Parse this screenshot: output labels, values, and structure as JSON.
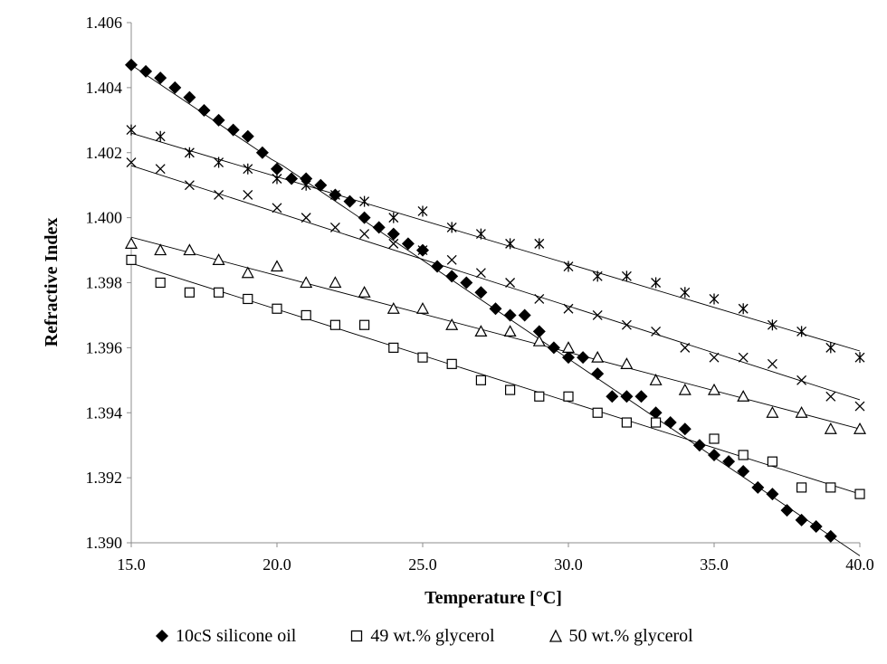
{
  "chart_data": {
    "type": "scatter",
    "title": "",
    "xlabel": "Temperature [°C]",
    "ylabel": "Refractive Index",
    "xlim": [
      15,
      40
    ],
    "ylim": [
      1.39,
      1.406
    ],
    "x_ticks": [
      "15.0",
      "20.0",
      "25.0",
      "30.0",
      "35.0",
      "40.0"
    ],
    "y_ticks": [
      "1.390",
      "1.392",
      "1.394",
      "1.396",
      "1.398",
      "1.400",
      "1.402",
      "1.404",
      "1.406"
    ],
    "grid": false,
    "legend_position": "bottom",
    "series": [
      {
        "name": "10cS silicone oil",
        "marker": "diamond-filled",
        "trendline": [
          [
            15,
            1.4047
          ],
          [
            19.8,
            1.4018
          ],
          [
            20.2,
            1.4016
          ],
          [
            40,
            1.3896
          ]
        ],
        "points": [
          [
            15,
            1.4047
          ],
          [
            15.5,
            1.4045
          ],
          [
            16,
            1.4043
          ],
          [
            16.5,
            1.404
          ],
          [
            17,
            1.4037
          ],
          [
            17.5,
            1.4033
          ],
          [
            18,
            1.403
          ],
          [
            18.5,
            1.4027
          ],
          [
            19,
            1.4025
          ],
          [
            19.5,
            1.402
          ],
          [
            20,
            1.4015
          ],
          [
            20.5,
            1.4012
          ],
          [
            21,
            1.4012
          ],
          [
            21.5,
            1.401
          ],
          [
            22,
            1.4007
          ],
          [
            22.5,
            1.4005
          ],
          [
            23,
            1.4
          ],
          [
            23.5,
            1.3997
          ],
          [
            24,
            1.3995
          ],
          [
            24.5,
            1.3992
          ],
          [
            25,
            1.399
          ],
          [
            25.5,
            1.3985
          ],
          [
            26,
            1.3982
          ],
          [
            26.5,
            1.398
          ],
          [
            27,
            1.3977
          ],
          [
            27.5,
            1.3972
          ],
          [
            28,
            1.397
          ],
          [
            28.5,
            1.397
          ],
          [
            29,
            1.3965
          ],
          [
            29.5,
            1.396
          ],
          [
            30,
            1.3957
          ],
          [
            30.5,
            1.3957
          ],
          [
            31,
            1.3952
          ],
          [
            31.5,
            1.3945
          ],
          [
            32,
            1.3945
          ],
          [
            32.5,
            1.3945
          ],
          [
            33,
            1.394
          ],
          [
            33.5,
            1.3937
          ],
          [
            34,
            1.3935
          ],
          [
            34.5,
            1.393
          ],
          [
            35,
            1.3927
          ],
          [
            35.5,
            1.3925
          ],
          [
            36,
            1.3922
          ],
          [
            36.5,
            1.3917
          ],
          [
            37,
            1.3915
          ],
          [
            37.5,
            1.391
          ],
          [
            38,
            1.3907
          ],
          [
            38.5,
            1.3905
          ],
          [
            39,
            1.3902
          ]
        ]
      },
      {
        "name": "49 wt.% glycerol",
        "marker": "square-open",
        "trendline": [
          [
            15,
            1.3986
          ],
          [
            40,
            1.3915
          ]
        ],
        "points": [
          [
            15,
            1.3987
          ],
          [
            16,
            1.398
          ],
          [
            17,
            1.3977
          ],
          [
            18,
            1.3977
          ],
          [
            19,
            1.3975
          ],
          [
            20,
            1.3972
          ],
          [
            21,
            1.397
          ],
          [
            22,
            1.3967
          ],
          [
            23,
            1.3967
          ],
          [
            24,
            1.396
          ],
          [
            25,
            1.3957
          ],
          [
            26,
            1.3955
          ],
          [
            27,
            1.395
          ],
          [
            28,
            1.3947
          ],
          [
            29,
            1.3945
          ],
          [
            30,
            1.3945
          ],
          [
            31,
            1.394
          ],
          [
            32,
            1.3937
          ],
          [
            33,
            1.3937
          ],
          [
            35,
            1.3932
          ],
          [
            36,
            1.3927
          ],
          [
            37,
            1.3925
          ],
          [
            38,
            1.3917
          ],
          [
            39,
            1.3917
          ],
          [
            40,
            1.3915
          ]
        ]
      },
      {
        "name": "50 wt.% glycerol",
        "marker": "triangle-open",
        "trendline": [
          [
            15,
            1.3994
          ],
          [
            40,
            1.3935
          ]
        ],
        "points": [
          [
            15,
            1.3992
          ],
          [
            16,
            1.399
          ],
          [
            17,
            1.399
          ],
          [
            18,
            1.3987
          ],
          [
            19,
            1.3983
          ],
          [
            20,
            1.3985
          ],
          [
            21,
            1.398
          ],
          [
            22,
            1.398
          ],
          [
            23,
            1.3977
          ],
          [
            24,
            1.3972
          ],
          [
            25,
            1.3972
          ],
          [
            26,
            1.3967
          ],
          [
            27,
            1.3965
          ],
          [
            28,
            1.3965
          ],
          [
            29,
            1.3962
          ],
          [
            30,
            1.396
          ],
          [
            31,
            1.3957
          ],
          [
            32,
            1.3955
          ],
          [
            33,
            1.395
          ],
          [
            34,
            1.3947
          ],
          [
            35,
            1.3947
          ],
          [
            36,
            1.3945
          ],
          [
            37,
            1.394
          ],
          [
            38,
            1.394
          ],
          [
            39,
            1.3935
          ],
          [
            40,
            1.3935
          ]
        ]
      },
      {
        "name": "",
        "marker": "x",
        "trendline": [
          [
            15,
            1.4016
          ],
          [
            40,
            1.3944
          ]
        ],
        "points": [
          [
            15,
            1.4017
          ],
          [
            16,
            1.4015
          ],
          [
            17,
            1.401
          ],
          [
            18,
            1.4007
          ],
          [
            19,
            1.4007
          ],
          [
            20,
            1.4003
          ],
          [
            21,
            1.4
          ],
          [
            22,
            1.3997
          ],
          [
            23,
            1.3995
          ],
          [
            24,
            1.3992
          ],
          [
            25,
            1.399
          ],
          [
            26,
            1.3987
          ],
          [
            27,
            1.3983
          ],
          [
            28,
            1.398
          ],
          [
            29,
            1.3975
          ],
          [
            30,
            1.3972
          ],
          [
            31,
            1.397
          ],
          [
            32,
            1.3967
          ],
          [
            33,
            1.3965
          ],
          [
            34,
            1.396
          ],
          [
            35,
            1.3957
          ],
          [
            36,
            1.3957
          ],
          [
            37,
            1.3955
          ],
          [
            38,
            1.395
          ],
          [
            39,
            1.3945
          ],
          [
            40,
            1.3942
          ]
        ]
      },
      {
        "name": "",
        "marker": "asterisk",
        "trendline": [
          [
            15,
            1.4026
          ],
          [
            40,
            1.3959
          ]
        ],
        "points": [
          [
            15,
            1.4027
          ],
          [
            16,
            1.4025
          ],
          [
            17,
            1.402
          ],
          [
            18,
            1.4017
          ],
          [
            19,
            1.4015
          ],
          [
            20,
            1.4012
          ],
          [
            21,
            1.401
          ],
          [
            22,
            1.4007
          ],
          [
            23,
            1.4005
          ],
          [
            24,
            1.4
          ],
          [
            25,
            1.4002
          ],
          [
            26,
            1.3997
          ],
          [
            27,
            1.3995
          ],
          [
            28,
            1.3992
          ],
          [
            29,
            1.3992
          ],
          [
            30,
            1.3985
          ],
          [
            31,
            1.3982
          ],
          [
            32,
            1.3982
          ],
          [
            33,
            1.398
          ],
          [
            34,
            1.3977
          ],
          [
            35,
            1.3975
          ],
          [
            36,
            1.3972
          ],
          [
            37,
            1.3967
          ],
          [
            38,
            1.3965
          ],
          [
            39,
            1.396
          ],
          [
            40,
            1.3957
          ]
        ]
      }
    ]
  }
}
